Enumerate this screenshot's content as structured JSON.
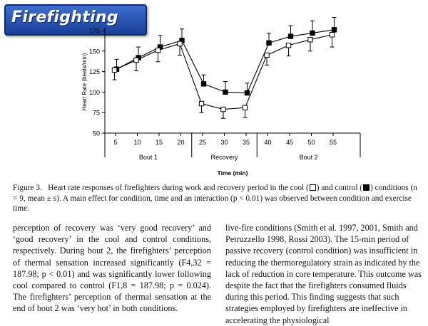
{
  "banner": {
    "title": "Firefighting"
  },
  "chart_data": {
    "type": "line",
    "title": "",
    "xlabel": "Time (min)",
    "ylabel": "Heart Rate (beats/min)",
    "x": [
      5,
      10,
      15,
      20,
      25,
      30,
      35,
      40,
      45,
      50,
      55
    ],
    "ylim": [
      50,
      175
    ],
    "yticks": [
      50,
      75,
      100,
      125,
      150,
      175
    ],
    "grid": false,
    "series": [
      {
        "marker": "filled-square",
        "values": [
          128,
          142,
          155,
          163,
          110,
          100,
          99,
          160,
          168,
          172,
          176
        ],
        "errors": [
          12,
          13,
          14,
          14,
          11,
          13,
          12,
          12,
          13,
          15,
          15
        ]
      },
      {
        "marker": "open-square",
        "values": [
          127,
          139,
          151,
          159,
          86,
          79,
          81,
          145,
          157,
          164,
          170
        ],
        "errors": [
          12,
          13,
          14,
          14,
          11,
          11,
          12,
          12,
          13,
          14,
          15
        ]
      }
    ],
    "periods": [
      {
        "label": "Bout 1",
        "from": 5,
        "to": 20
      },
      {
        "label": "Recovery",
        "from": 25,
        "to": 35
      },
      {
        "label": "Bout 2",
        "from": 40,
        "to": 55
      }
    ]
  },
  "caption": {
    "figure": "Figure 3.",
    "text1": "Heart rate responses of firefighters during work and recovery period in the cool (",
    "text2": ") and control (",
    "text3": ") conditions (n = 9, mean ± s). A main effect for condition, time and an interaction (p < 0.01) was observed between condition and exercise time."
  },
  "body": {
    "left": "perception of recovery was ‘very good recovery’ and ‘good recovery’ in the cool and control conditions, respectively. During bout 2, the firefighters’ perception of thermal sensation increased significantly (F4,32 = 187.98; p < 0.01) and was significantly lower following cool compared to control (F1,8 = 187.98; p = 0.024). The firefighters’ perception of thermal sensation at the end of bout 2 was ‘very hot’ in both conditions.",
    "right": "live-fire conditions (Smith et al. 1997, 2001, Smith and Petruzzello 1998, Rossi 2003). The 15-min period of passive recovery (control condition) was insufficient in reducing the thermoregulatory strain as indicated by the lack of reduction in core temperature. This outcome was despite the fact that the firefighters consumed fluids during this period. This finding suggests that such strategies employed by firefighters are ineffective in accelerating the physiological"
  }
}
